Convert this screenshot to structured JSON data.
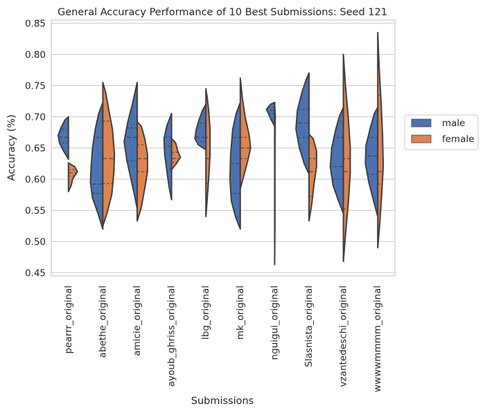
{
  "chart_data": {
    "type": "violin",
    "title": "General Accuracy  Performance of 10 Best Submissions: Seed 121",
    "xlabel": "Submissions",
    "ylabel": "Accuracy (%)",
    "ylim": [
      0.445,
      0.855
    ],
    "yticks": [
      "0.45",
      "0.50",
      "0.55",
      "0.60",
      "0.65",
      "0.70",
      "0.75",
      "0.80",
      "0.85"
    ],
    "grid": true,
    "split": true,
    "inner": "quartile",
    "legend": {
      "placement": "right",
      "entries": [
        {
          "label": "male",
          "color": "#4c72b0"
        },
        {
          "label": "female",
          "color": "#dd8452"
        }
      ]
    },
    "categories": [
      "pearrr_original",
      "abethe_original",
      "amicie_original",
      "ayoub_ghriss_original",
      "lbg_original",
      "mk_original",
      "nguigui_original",
      "Slasnista_original",
      "vzantedeschi_original",
      "wwwwmmmm_original"
    ],
    "series": [
      {
        "name": "male",
        "color": "#4c72b0",
        "violins": [
          {
            "min": 0.632,
            "max": 0.7,
            "q1": 0.658,
            "median": 0.667,
            "q3": 0.68,
            "profile": [
              [
                0.632,
                0.0
              ],
              [
                0.645,
                0.35
              ],
              [
                0.658,
                0.65
              ],
              [
                0.67,
                0.75
              ],
              [
                0.682,
                0.55
              ],
              [
                0.695,
                0.25
              ],
              [
                0.7,
                0.0
              ]
            ]
          },
          {
            "min": 0.52,
            "max": 0.723,
            "q1": 0.577,
            "median": 0.592,
            "q3": 0.667,
            "profile": [
              [
                0.52,
                0.0
              ],
              [
                0.545,
                0.35
              ],
              [
                0.57,
                0.75
              ],
              [
                0.595,
                0.9
              ],
              [
                0.62,
                0.85
              ],
              [
                0.65,
                0.75
              ],
              [
                0.68,
                0.55
              ],
              [
                0.705,
                0.3
              ],
              [
                0.723,
                0.0
              ]
            ]
          },
          {
            "min": 0.552,
            "max": 0.755,
            "q1": 0.629,
            "median": 0.667,
            "q3": 0.682,
            "profile": [
              [
                0.552,
                0.0
              ],
              [
                0.575,
                0.2
              ],
              [
                0.6,
                0.45
              ],
              [
                0.63,
                0.75
              ],
              [
                0.66,
                0.95
              ],
              [
                0.69,
                0.7
              ],
              [
                0.72,
                0.35
              ],
              [
                0.74,
                0.15
              ],
              [
                0.755,
                0.0
              ]
            ]
          },
          {
            "min": 0.567,
            "max": 0.705,
            "q1": 0.617,
            "median": 0.652,
            "q3": 0.667,
            "profile": [
              [
                0.567,
                0.0
              ],
              [
                0.59,
                0.2
              ],
              [
                0.615,
                0.35
              ],
              [
                0.64,
                0.5
              ],
              [
                0.665,
                0.55
              ],
              [
                0.685,
                0.35
              ],
              [
                0.705,
                0.0
              ]
            ]
          },
          {
            "min": 0.647,
            "max": 0.72,
            "q1": 0.66,
            "median": 0.667,
            "q3": 0.69,
            "profile": [
              [
                0.647,
                0.0
              ],
              [
                0.655,
                0.55
              ],
              [
                0.665,
                0.8
              ],
              [
                0.68,
                0.7
              ],
              [
                0.695,
                0.5
              ],
              [
                0.71,
                0.25
              ],
              [
                0.72,
                0.0
              ]
            ]
          },
          {
            "min": 0.52,
            "max": 0.723,
            "q1": 0.577,
            "median": 0.625,
            "q3": 0.667,
            "profile": [
              [
                0.52,
                0.0
              ],
              [
                0.54,
                0.35
              ],
              [
                0.565,
                0.65
              ],
              [
                0.6,
                0.75
              ],
              [
                0.64,
                0.7
              ],
              [
                0.68,
                0.55
              ],
              [
                0.705,
                0.3
              ],
              [
                0.723,
                0.0
              ]
            ]
          },
          {
            "min": 0.685,
            "max": 0.723,
            "q1": 0.705,
            "median": 0.71,
            "q3": 0.715,
            "profile": [
              [
                0.685,
                0.0
              ],
              [
                0.695,
                0.25
              ],
              [
                0.705,
                0.45
              ],
              [
                0.712,
                0.6
              ],
              [
                0.72,
                0.3
              ],
              [
                0.723,
                0.0
              ]
            ]
          },
          {
            "min": 0.608,
            "max": 0.77,
            "q1": 0.667,
            "median": 0.69,
            "q3": 0.712,
            "profile": [
              [
                0.608,
                0.0
              ],
              [
                0.625,
                0.35
              ],
              [
                0.65,
                0.7
              ],
              [
                0.68,
                0.95
              ],
              [
                0.71,
                0.85
              ],
              [
                0.74,
                0.5
              ],
              [
                0.76,
                0.2
              ],
              [
                0.77,
                0.0
              ]
            ]
          },
          {
            "min": 0.545,
            "max": 0.715,
            "q1": 0.6,
            "median": 0.62,
            "q3": 0.667,
            "profile": [
              [
                0.545,
                0.0
              ],
              [
                0.565,
                0.35
              ],
              [
                0.59,
                0.75
              ],
              [
                0.62,
                0.95
              ],
              [
                0.65,
                0.85
              ],
              [
                0.68,
                0.55
              ],
              [
                0.7,
                0.3
              ],
              [
                0.715,
                0.0
              ]
            ]
          },
          {
            "min": 0.54,
            "max": 0.715,
            "q1": 0.608,
            "median": 0.637,
            "q3": 0.667,
            "profile": [
              [
                0.54,
                0.0
              ],
              [
                0.565,
                0.3
              ],
              [
                0.595,
                0.65
              ],
              [
                0.625,
                0.9
              ],
              [
                0.655,
                0.85
              ],
              [
                0.685,
                0.5
              ],
              [
                0.705,
                0.25
              ],
              [
                0.715,
                0.0
              ]
            ]
          }
        ]
      },
      {
        "name": "female",
        "color": "#dd8452",
        "violins": [
          {
            "min": 0.58,
            "max": 0.626,
            "q1": 0.605,
            "median": 0.61,
            "q3": 0.615,
            "profile": [
              [
                0.58,
                0.0
              ],
              [
                0.59,
                0.2
              ],
              [
                0.6,
                0.3
              ],
              [
                0.612,
                0.65
              ],
              [
                0.62,
                0.45
              ],
              [
                0.626,
                0.0
              ]
            ]
          },
          {
            "min": 0.525,
            "max": 0.755,
            "q1": 0.593,
            "median": 0.633,
            "q3": 0.693,
            "profile": [
              [
                0.525,
                0.0
              ],
              [
                0.545,
                0.3
              ],
              [
                0.575,
                0.65
              ],
              [
                0.61,
                0.8
              ],
              [
                0.64,
                0.85
              ],
              [
                0.68,
                0.7
              ],
              [
                0.715,
                0.4
              ],
              [
                0.74,
                0.2
              ],
              [
                0.755,
                0.0
              ]
            ]
          },
          {
            "min": 0.533,
            "max": 0.692,
            "q1": 0.612,
            "median": 0.633,
            "q3": 0.655,
            "profile": [
              [
                0.533,
                0.0
              ],
              [
                0.555,
                0.3
              ],
              [
                0.585,
                0.55
              ],
              [
                0.612,
                0.75
              ],
              [
                0.64,
                0.75
              ],
              [
                0.665,
                0.55
              ],
              [
                0.685,
                0.3
              ],
              [
                0.692,
                0.0
              ]
            ]
          },
          {
            "min": 0.615,
            "max": 0.665,
            "q1": 0.627,
            "median": 0.633,
            "q3": 0.643,
            "profile": [
              [
                0.615,
                0.0
              ],
              [
                0.625,
                0.35
              ],
              [
                0.635,
                0.65
              ],
              [
                0.645,
                0.45
              ],
              [
                0.658,
                0.3
              ],
              [
                0.665,
                0.0
              ]
            ]
          },
          {
            "min": 0.54,
            "max": 0.745,
            "q1": 0.593,
            "median": 0.633,
            "q3": 0.667,
            "profile": [
              [
                0.54,
                0.0
              ],
              [
                0.57,
                0.1
              ],
              [
                0.6,
                0.2
              ],
              [
                0.64,
                0.3
              ],
              [
                0.68,
                0.3
              ],
              [
                0.71,
                0.2
              ],
              [
                0.73,
                0.1
              ],
              [
                0.745,
                0.0
              ]
            ]
          },
          {
            "min": 0.585,
            "max": 0.762,
            "q1": 0.633,
            "median": 0.65,
            "q3": 0.667,
            "profile": [
              [
                0.585,
                0.0
              ],
              [
                0.605,
                0.25
              ],
              [
                0.63,
                0.55
              ],
              [
                0.65,
                0.75
              ],
              [
                0.67,
                0.65
              ],
              [
                0.7,
                0.35
              ],
              [
                0.73,
                0.15
              ],
              [
                0.762,
                0.0
              ]
            ]
          },
          {
            "min": 0.463,
            "max": 0.722,
            "q1": 0.58,
            "median": 0.62,
            "q3": 0.69,
            "profile": [
              [
                0.463,
                0.0
              ],
              [
                0.52,
                0.02
              ],
              [
                0.6,
                0.02
              ],
              [
                0.68,
                0.03
              ],
              [
                0.7,
                0.05
              ],
              [
                0.722,
                0.0
              ]
            ]
          },
          {
            "min": 0.533,
            "max": 0.672,
            "q1": 0.572,
            "median": 0.612,
            "q3": 0.633,
            "profile": [
              [
                0.533,
                0.0
              ],
              [
                0.56,
                0.2
              ],
              [
                0.59,
                0.35
              ],
              [
                0.62,
                0.55
              ],
              [
                0.645,
                0.55
              ],
              [
                0.665,
                0.3
              ],
              [
                0.672,
                0.0
              ]
            ]
          },
          {
            "min": 0.468,
            "max": 0.8,
            "q1": 0.552,
            "median": 0.612,
            "q3": 0.633,
            "profile": [
              [
                0.468,
                0.0
              ],
              [
                0.51,
                0.15
              ],
              [
                0.56,
                0.35
              ],
              [
                0.61,
                0.5
              ],
              [
                0.65,
                0.5
              ],
              [
                0.7,
                0.35
              ],
              [
                0.75,
                0.15
              ],
              [
                0.8,
                0.0
              ]
            ]
          },
          {
            "min": 0.49,
            "max": 0.835,
            "q1": 0.592,
            "median": 0.612,
            "q3": 0.735,
            "profile": [
              [
                0.49,
                0.0
              ],
              [
                0.53,
                0.15
              ],
              [
                0.58,
                0.3
              ],
              [
                0.62,
                0.4
              ],
              [
                0.67,
                0.35
              ],
              [
                0.72,
                0.25
              ],
              [
                0.78,
                0.1
              ],
              [
                0.835,
                0.0
              ]
            ]
          }
        ]
      }
    ]
  }
}
